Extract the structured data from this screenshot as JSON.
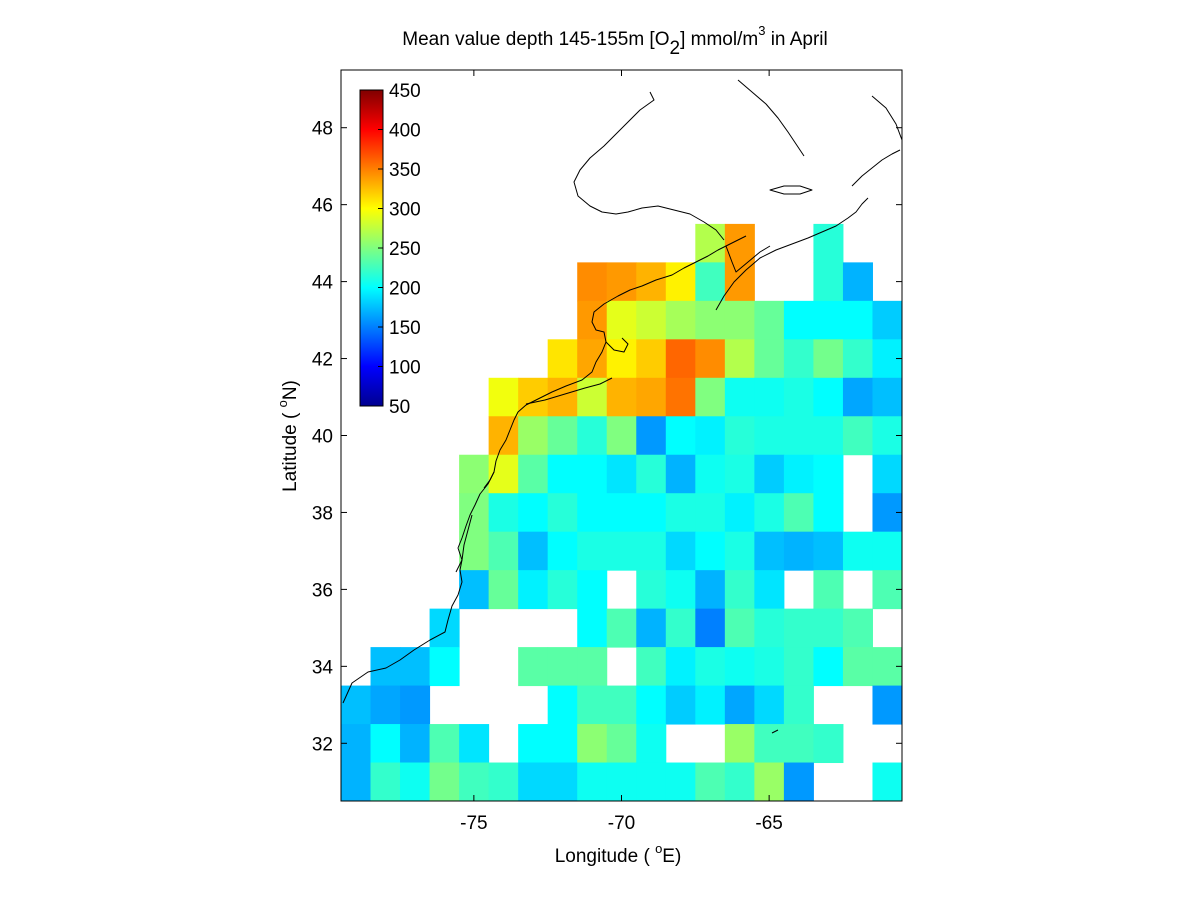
{
  "chart_data": {
    "type": "heatmap",
    "title": {
      "part1": "Mean value depth 145-155m [O",
      "sub": "2",
      "part2": "] mmol/m",
      "sup": "3",
      "part3": " in April"
    },
    "xlabel": {
      "pre": "Longitude ( ",
      "sup": "o",
      "post": "E)"
    },
    "ylabel": {
      "pre": "Latitude ( ",
      "sup": "o",
      "post": "N)"
    },
    "xlim": [
      -79.5,
      -60.5
    ],
    "ylim": [
      30.5,
      49.5
    ],
    "xticks": [
      -75,
      -70,
      -65
    ],
    "xtick_labels": [
      "-75",
      "-70",
      "-65"
    ],
    "yticks": [
      32,
      34,
      36,
      38,
      40,
      42,
      44,
      46,
      48
    ],
    "ytick_labels": [
      "32",
      "34",
      "36",
      "38",
      "40",
      "42",
      "44",
      "46",
      "48"
    ],
    "colorbar": {
      "colormap": "jet",
      "clim": [
        50,
        450
      ],
      "ticks": [
        50,
        100,
        150,
        200,
        250,
        300,
        350,
        400,
        450
      ],
      "tick_labels": [
        "50",
        "100",
        "150",
        "200",
        "250",
        "300",
        "350",
        "400",
        "450"
      ],
      "placement": "upper-left inside axes"
    },
    "grid": false,
    "cell_size_deg": 1,
    "lon_centers": [
      -79,
      -78,
      -77,
      -76,
      -75,
      -74,
      -73,
      -72,
      -71,
      -70,
      -69,
      -68,
      -67,
      -66,
      -65,
      -64,
      -63,
      -62,
      -61
    ],
    "lat_centers": [
      45,
      44,
      43,
      42,
      41,
      40,
      39,
      38,
      37,
      36,
      35,
      34,
      33,
      32,
      31
    ],
    "values_rows_north_to_south": [
      [
        null,
        null,
        null,
        null,
        null,
        null,
        null,
        null,
        null,
        null,
        null,
        null,
        270,
        340,
        null,
        null,
        215,
        null,
        null
      ],
      [
        null,
        null,
        null,
        null,
        null,
        null,
        null,
        null,
        345,
        340,
        330,
        305,
        225,
        340,
        null,
        null,
        215,
        170,
        null
      ],
      [
        null,
        null,
        null,
        null,
        null,
        null,
        null,
        null,
        340,
        290,
        280,
        265,
        255,
        255,
        240,
        200,
        200,
        200,
        180
      ],
      [
        null,
        null,
        null,
        null,
        null,
        null,
        null,
        310,
        335,
        305,
        320,
        360,
        345,
        270,
        240,
        220,
        245,
        220,
        195
      ],
      [
        null,
        null,
        null,
        null,
        null,
        295,
        320,
        330,
        280,
        330,
        335,
        355,
        250,
        205,
        205,
        210,
        200,
        165,
        175
      ],
      [
        null,
        null,
        null,
        null,
        null,
        330,
        260,
        240,
        215,
        250,
        160,
        200,
        195,
        215,
        210,
        210,
        210,
        225,
        210
      ],
      [
        null,
        null,
        null,
        null,
        255,
        290,
        235,
        200,
        200,
        190,
        215,
        170,
        205,
        210,
        180,
        195,
        200,
        null,
        185
      ],
      [
        null,
        null,
        null,
        null,
        250,
        210,
        200,
        215,
        200,
        200,
        200,
        210,
        210,
        195,
        210,
        230,
        200,
        null,
        160
      ],
      [
        null,
        null,
        null,
        null,
        250,
        230,
        175,
        200,
        210,
        210,
        210,
        185,
        200,
        210,
        175,
        170,
        175,
        205,
        205
      ],
      [
        null,
        null,
        null,
        null,
        175,
        240,
        195,
        215,
        200,
        null,
        215,
        205,
        170,
        220,
        190,
        null,
        230,
        null,
        230
      ],
      [
        null,
        null,
        null,
        185,
        null,
        null,
        null,
        null,
        200,
        230,
        170,
        220,
        150,
        230,
        215,
        220,
        220,
        230,
        null
      ],
      [
        null,
        175,
        175,
        200,
        null,
        null,
        235,
        235,
        235,
        null,
        225,
        195,
        210,
        205,
        210,
        220,
        200,
        235,
        235
      ],
      [
        175,
        165,
        160,
        null,
        null,
        null,
        null,
        200,
        225,
        225,
        200,
        180,
        195,
        165,
        185,
        220,
        null,
        null,
        160
      ],
      [
        170,
        200,
        170,
        230,
        190,
        null,
        200,
        200,
        255,
        240,
        205,
        null,
        null,
        260,
        225,
        225,
        220,
        null,
        null
      ],
      [
        170,
        220,
        205,
        245,
        225,
        220,
        185,
        185,
        205,
        205,
        205,
        205,
        230,
        220,
        260,
        160,
        null,
        null,
        205
      ]
    ]
  }
}
